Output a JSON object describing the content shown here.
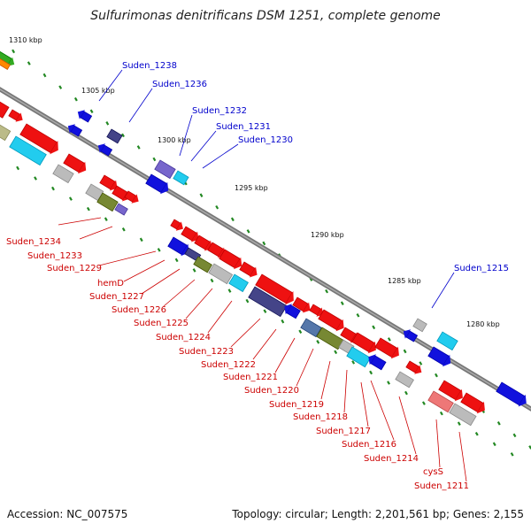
{
  "title": "Sulfurimonas denitrificans DSM 1251, complete genome",
  "footer": {
    "accession": "Accession: NC_007575",
    "topology": "Topology: circular; Length: 2,201,561 bp; Genes: 2,155"
  },
  "colors": {
    "forward_label": "#0000cc",
    "reverse_label": "#cc0000",
    "backbone": "#777777",
    "tick": "#228822",
    "gene_red": "#ee1111",
    "gene_blue": "#1111dd",
    "gene_navy": "#444488",
    "gene_purple": "#7766cc",
    "gene_cyan": "#22ccee",
    "gene_gray": "#bbbbbb",
    "gene_olive": "#778833",
    "gene_steel": "#5577aa",
    "gene_pink": "#ee7777"
  },
  "scale_ticks": [
    "1310 kbp",
    "1305 kbp",
    "1300 kbp",
    "1295 kbp",
    "1290 kbp",
    "1285 kbp",
    "1280 kbp"
  ],
  "forward_genes": [
    "Suden_1238",
    "Suden_1236",
    "Suden_1232",
    "Suden_1231",
    "Suden_1230",
    "Suden_1215"
  ],
  "reverse_genes": [
    "Suden_1234",
    "Suden_1233",
    "Suden_1229",
    "hemD",
    "Suden_1227",
    "Suden_1226",
    "Suden_1225",
    "Suden_1224",
    "Suden_1223",
    "Suden_1222",
    "Suden_1221",
    "Suden_1220",
    "Suden_1219",
    "Suden_1218",
    "Suden_1217",
    "Suden_1216",
    "Suden_1214",
    "cysS",
    "Suden_1211"
  ]
}
